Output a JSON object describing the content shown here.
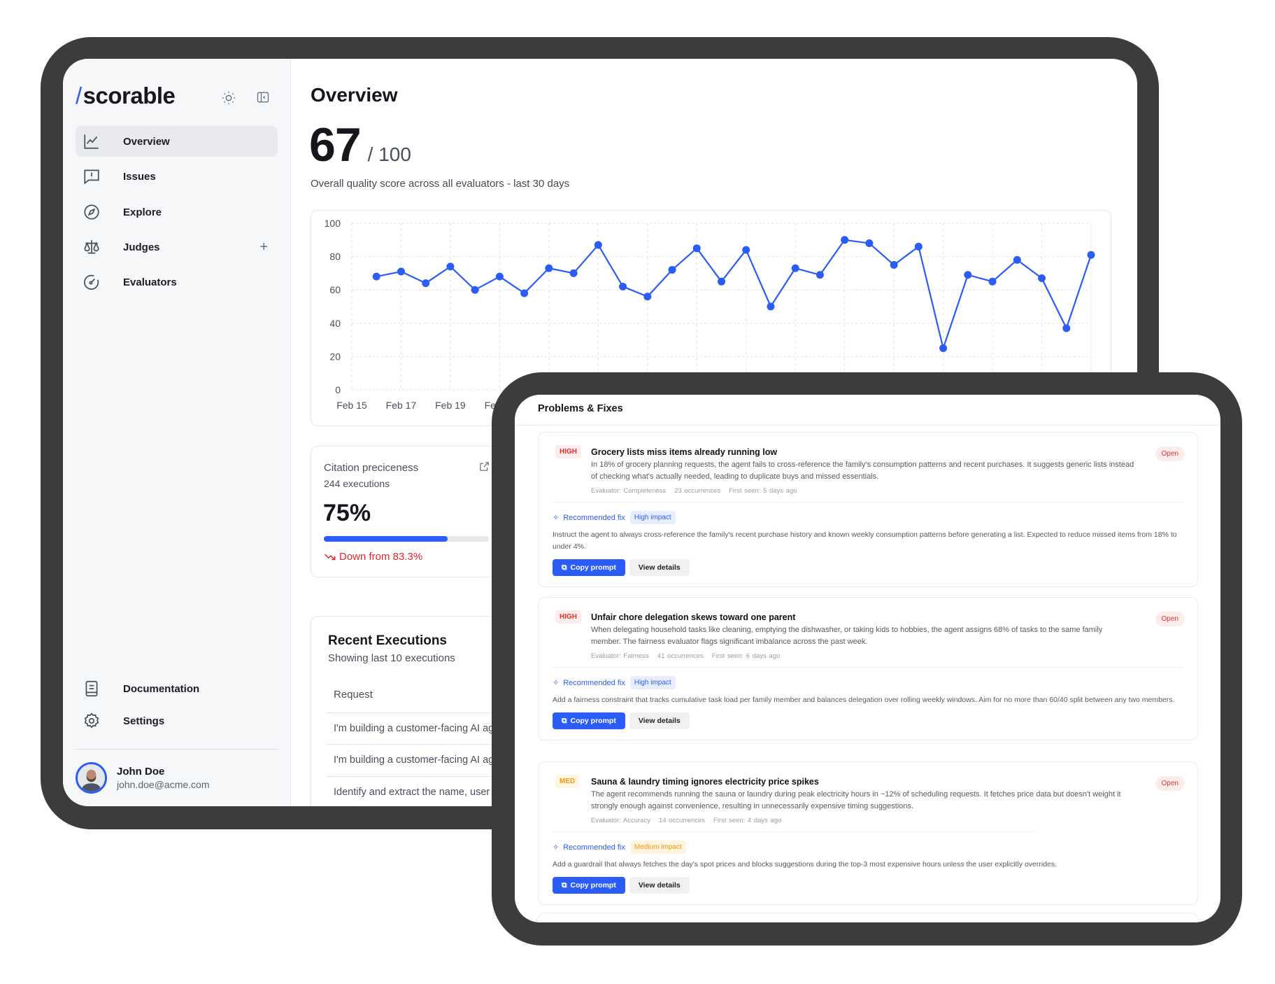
{
  "app": {
    "logo_slash": "/",
    "logo_text": "scorable"
  },
  "sidebar": {
    "items": [
      {
        "label": "Overview",
        "icon": "chart-line-icon",
        "active": true
      },
      {
        "label": "Issues",
        "icon": "message-alert-icon"
      },
      {
        "label": "Explore",
        "icon": "compass-icon"
      },
      {
        "label": "Judges",
        "icon": "scale-icon"
      },
      {
        "label": "Evaluators",
        "icon": "gauge-icon"
      }
    ],
    "bottom_items": [
      {
        "label": "Documentation",
        "icon": "book-icon"
      },
      {
        "label": "Settings",
        "icon": "gear-icon"
      }
    ],
    "user": {
      "name": "John Doe",
      "email": "john.doe@acme.com"
    }
  },
  "main": {
    "title": "Overview",
    "score": "67",
    "score_max": "/ 100",
    "score_caption": "Overall quality score across all evaluators - last 30 days",
    "citation": {
      "title": "Citation preciceness",
      "executions": "244 executions",
      "value": "75%",
      "progress": 75,
      "trend": "Down from 83.3%"
    },
    "recent": {
      "title": "Recent Executions",
      "subtitle": "Showing last 10 executions",
      "column": "Request",
      "rows": [
        "I'm building a customer-facing AI ag",
        "I'm building a customer-facing AI ag",
        "Identify and extract the name, user"
      ]
    }
  },
  "chart_data": {
    "type": "line",
    "ylim": [
      0,
      100
    ],
    "yticks": [
      "0",
      "20",
      "40",
      "60",
      "80",
      "100"
    ],
    "xtick_labels": [
      "Feb 15",
      "Feb 17",
      "Feb 19",
      "Feb 21"
    ],
    "grid": true,
    "color": "#2b5cf6",
    "x": [
      "Feb 16",
      "Feb 17",
      "Feb 18",
      "Feb 19",
      "Feb 20",
      "Feb 21",
      "Feb 22",
      "Feb 23",
      "Feb 24",
      "Feb 25",
      "Feb 26",
      "Feb 27",
      "Feb 28",
      "Mar 1",
      "Mar 2",
      "Mar 3",
      "Mar 4",
      "Mar 5",
      "Mar 6",
      "Mar 7",
      "Mar 8",
      "Mar 9",
      "Mar 10",
      "Mar 11",
      "Mar 12",
      "Mar 13",
      "Mar 14",
      "Mar 15",
      "Mar 16",
      "Mar 17"
    ],
    "values": [
      68,
      71,
      64,
      74,
      60,
      68,
      58,
      73,
      70,
      87,
      62,
      56,
      72,
      85,
      65,
      84,
      50,
      73,
      69,
      90,
      88,
      75,
      86,
      25,
      69,
      65,
      78,
      67,
      37,
      81
    ]
  },
  "problems": {
    "title": "Problems & Fixes",
    "copy_label": "Copy prompt",
    "view_label": "View details",
    "rec_label": "Recommended fix",
    "items": [
      {
        "severity": "HIGH",
        "title": "Grocery lists miss items already running low",
        "description": "In 18% of grocery planning requests, the agent fails to cross-reference the family's consumption patterns and recent purchases. It suggests generic lists instead of checking what's actually needed, leading to duplicate buys and missed essentials.",
        "evaluator": "Evaluator: Completeness",
        "occurrences": "23 occurrences",
        "first_seen": "First seen: 5 days ago",
        "status": "Open",
        "impact": "High impact",
        "fix": "Instruct the agent to always cross-reference the family's recent purchase history and known weekly consumption patterns before generating a list. Expected to reduce missed items from 18% to under 4%."
      },
      {
        "severity": "HIGH",
        "title": "Unfair chore delegation skews toward one parent",
        "description": "When delegating household tasks like cleaning, emptying the dishwasher, or taking kids to hobbies, the agent assigns 68% of tasks to the same family member. The fairness evaluator flags significant imbalance across the past week.",
        "evaluator": "Evaluator: Fairness",
        "occurrences": "41 occurrences",
        "first_seen": "First seen: 6 days ago",
        "status": "Open",
        "impact": "High impact",
        "fix": "Add a fairness constraint that tracks cumulative task load per family member and balances delegation over rolling weekly windows. Aim for no more than 60/40 split between any two members."
      },
      {
        "severity": "MED",
        "title": "Sauna & laundry timing ignores electricity price spikes",
        "description": "The agent recommends running the sauna or laundry during peak electricity hours in ~12% of scheduling requests. It fetches price data but doesn't weight it strongly enough against convenience, resulting in unnecessarily expensive timing suggestions.",
        "evaluator": "Evaluator: Accuracy",
        "occurrences": "14 occurrences",
        "first_seen": "First seen: 4 days ago",
        "status": "Open",
        "impact": "Medium impact",
        "fix": "Add a guardrail that always fetches the day's spot prices and blocks suggestions during the top-3 most expensive hours unless the user explicitly overrides."
      }
    ]
  }
}
